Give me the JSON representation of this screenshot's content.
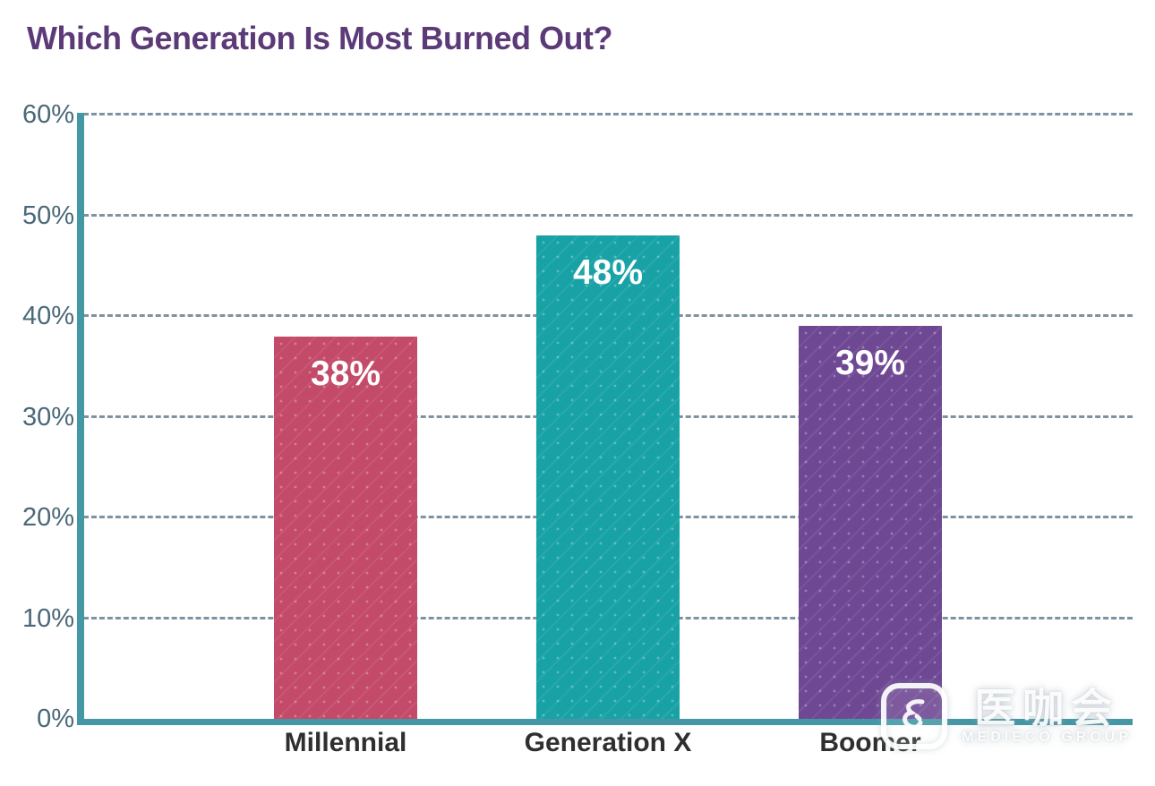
{
  "title": "Which Generation Is Most Burned Out?",
  "chart_data": {
    "type": "bar",
    "title": "Which Generation Is Most Burned Out?",
    "categories": [
      "Millennial",
      "Generation X",
      "Boomer"
    ],
    "values": [
      38,
      48,
      39
    ],
    "value_labels": [
      "38%",
      "48%",
      "39%"
    ],
    "bar_colors": [
      "#c34a68",
      "#18a2a6",
      "#6f4894"
    ],
    "xlabel": "",
    "ylabel": "",
    "ylim": [
      0,
      60
    ],
    "yticks": [
      0,
      10,
      20,
      30,
      40,
      50,
      60
    ],
    "ytick_labels": [
      "0%",
      "10%",
      "20%",
      "30%",
      "40%",
      "50%",
      "60%"
    ],
    "grid": "horizontal-dashed",
    "legend": "none"
  },
  "colors": {
    "title": "#5c3a78",
    "axis": "#4498a6",
    "gridline": "#7e93a1",
    "tick_label": "#4a6878",
    "category_label": "#2f2f2f",
    "bar_value_label": "#ffffff",
    "background": "#ffffff"
  },
  "watermark": {
    "name": "医咖会",
    "subtitle": "MEDIECO GROUP"
  }
}
